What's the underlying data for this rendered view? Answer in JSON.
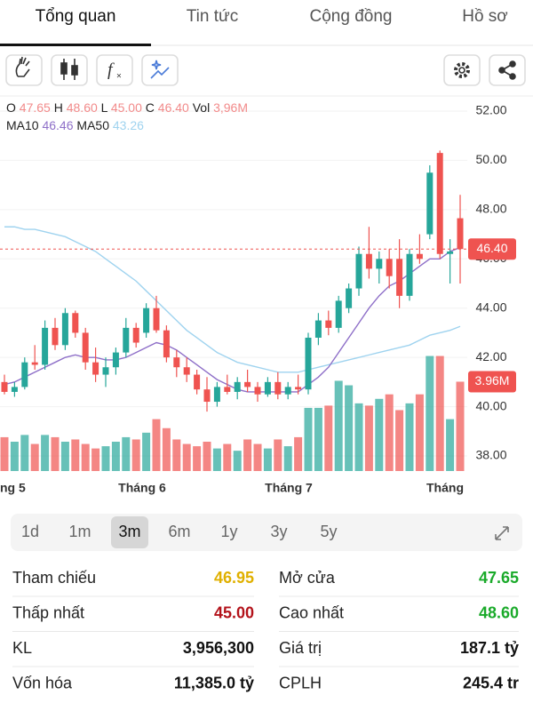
{
  "tabs": [
    "Tổng quan",
    "Tin tức",
    "Cộng đồng",
    "Hồ sơ"
  ],
  "chart": {
    "type": "candlestick",
    "ohlc_header": {
      "o_label": "O",
      "o": "47.65",
      "h_label": "H",
      "h": "48.60",
      "l_label": "L",
      "l": "45.00",
      "c_label": "C",
      "c": "46.40",
      "vol_label": "Vol",
      "vol": "3,96M"
    },
    "ma_header": {
      "ma10_label": "MA10",
      "ma10": "46.46",
      "ma50_label": "MA50",
      "ma50": "43.26"
    },
    "price_label": "46.40",
    "volume_label": "3.96M",
    "x_labels": [
      "ng 5",
      "Tháng 6",
      "Tháng 7",
      "Tháng"
    ],
    "ylim": [
      37.2,
      52.6
    ],
    "yticks": [
      {
        "value": 52,
        "label": "52.00"
      },
      {
        "value": 50,
        "label": "50.00"
      },
      {
        "value": 48,
        "label": "48.00"
      },
      {
        "value": 46,
        "label": "46.00"
      },
      {
        "value": 44,
        "label": "44.00"
      },
      {
        "value": 42,
        "label": "42.00"
      },
      {
        "value": 40,
        "label": "40.00"
      },
      {
        "value": 38,
        "label": "38.00"
      }
    ],
    "volume_ylim": [
      0,
      5.2
    ],
    "colors": {
      "up": "#26a69a",
      "down": "#ef5350",
      "ma10": "#8e6fc8",
      "ma50": "#9fd3ef"
    },
    "open": [
      41.0,
      40.6,
      40.8,
      41.8,
      41.7,
      43.2,
      42.5,
      43.8,
      43.0,
      41.8,
      41.3,
      41.6,
      42.2,
      43.2,
      43.0,
      44.0,
      43.1,
      42.0,
      41.6,
      41.3,
      40.7,
      40.2,
      40.8,
      40.6,
      41.0,
      40.8,
      40.5,
      41.0,
      40.5,
      40.8,
      40.7,
      42.8,
      43.5,
      43.2,
      44.0,
      44.8,
      46.2,
      45.6,
      46.0,
      46.0,
      44.5,
      46.2,
      47.0,
      50.3,
      46.2,
      47.65
    ],
    "high": [
      41.3,
      41.0,
      42.0,
      42.5,
      43.5,
      43.6,
      44.0,
      43.9,
      43.2,
      42.4,
      42.0,
      42.4,
      43.6,
      43.4,
      44.2,
      44.5,
      43.3,
      42.3,
      42.0,
      41.5,
      41.2,
      41.0,
      41.3,
      41.2,
      41.5,
      41.0,
      41.2,
      41.4,
      41.0,
      41.3,
      43.0,
      43.8,
      43.9,
      44.5,
      45.0,
      46.5,
      47.3,
      46.3,
      46.4,
      46.8,
      46.4,
      47.0,
      49.8,
      50.4,
      46.8,
      48.6
    ],
    "low": [
      40.5,
      40.4,
      40.7,
      41.5,
      41.5,
      42.3,
      42.3,
      42.8,
      41.5,
      41.0,
      40.8,
      41.3,
      42.0,
      42.4,
      42.8,
      43.0,
      41.8,
      41.2,
      41.0,
      40.5,
      39.8,
      40.0,
      40.5,
      40.3,
      40.6,
      40.2,
      40.4,
      40.3,
      40.3,
      40.5,
      40.5,
      42.5,
      42.9,
      43.0,
      43.8,
      44.5,
      45.2,
      45.0,
      44.8,
      44.0,
      44.3,
      45.8,
      46.8,
      46.0,
      45.0,
      45.0
    ],
    "close": [
      40.6,
      40.8,
      41.8,
      41.7,
      43.2,
      42.5,
      43.8,
      43.0,
      41.8,
      41.3,
      41.6,
      42.2,
      43.2,
      42.6,
      44.0,
      43.1,
      42.0,
      41.6,
      41.3,
      40.7,
      40.2,
      40.8,
      40.6,
      41.0,
      40.8,
      40.5,
      41.0,
      40.5,
      40.8,
      40.7,
      42.8,
      43.5,
      43.2,
      44.3,
      44.8,
      46.2,
      45.6,
      46.0,
      45.3,
      44.5,
      46.2,
      46.0,
      49.5,
      46.2,
      46.3,
      46.4
    ],
    "volume": [
      1.5,
      1.3,
      1.6,
      1.2,
      1.6,
      1.5,
      1.3,
      1.4,
      1.2,
      1.0,
      1.1,
      1.3,
      1.5,
      1.4,
      1.7,
      2.3,
      1.9,
      1.4,
      1.2,
      1.1,
      1.3,
      1.0,
      1.2,
      0.9,
      1.4,
      1.2,
      1.0,
      1.4,
      1.1,
      1.5,
      2.8,
      2.8,
      2.9,
      4.0,
      3.8,
      3.0,
      2.9,
      3.2,
      3.4,
      2.7,
      3.0,
      3.4,
      5.1,
      5.1,
      2.3,
      3.96
    ],
    "ma10": [
      40.9,
      41.0,
      41.2,
      41.4,
      41.6,
      41.8,
      42.0,
      42.1,
      42.0,
      42.0,
      41.9,
      41.9,
      42.0,
      42.2,
      42.4,
      42.6,
      42.5,
      42.3,
      42.0,
      41.7,
      41.4,
      41.1,
      40.9,
      40.7,
      40.6,
      40.6,
      40.6,
      40.6,
      40.6,
      40.6,
      40.9,
      41.2,
      41.6,
      42.2,
      42.8,
      43.4,
      44.0,
      44.5,
      44.9,
      45.1,
      45.4,
      45.7,
      46.0,
      46.0,
      46.3,
      46.46
    ],
    "ma50": [
      47.3,
      47.3,
      47.2,
      47.2,
      47.1,
      47.0,
      46.9,
      46.7,
      46.5,
      46.3,
      46.0,
      45.7,
      45.4,
      45.1,
      44.7,
      44.3,
      43.9,
      43.5,
      43.1,
      42.8,
      42.5,
      42.2,
      42.0,
      41.8,
      41.7,
      41.6,
      41.5,
      41.4,
      41.4,
      41.4,
      41.5,
      41.6,
      41.7,
      41.8,
      41.9,
      42.0,
      42.1,
      42.2,
      42.3,
      42.4,
      42.5,
      42.7,
      42.9,
      43.0,
      43.1,
      43.26
    ]
  },
  "periods": [
    "1d",
    "1m",
    "3m",
    "6m",
    "1y",
    "3y",
    "5y"
  ],
  "active_period": "3m",
  "stats": [
    [
      {
        "label": "Tham chiếu",
        "value": "46.95",
        "color": "#e0b000"
      },
      {
        "label": "Mở cửa",
        "value": "47.65",
        "color": "#1aaa2a"
      }
    ],
    [
      {
        "label": "Thấp nhất",
        "value": "45.00",
        "color": "#b3121a"
      },
      {
        "label": "Cao nhất",
        "value": "48.60",
        "color": "#1aaa2a"
      }
    ],
    [
      {
        "label": "KL",
        "value": "3,956,300",
        "color": "#111111"
      },
      {
        "label": "Giá trị",
        "value": "187.1 tỷ",
        "color": "#111111"
      }
    ],
    [
      {
        "label": "Vốn hóa",
        "value": "11,385.0 tỷ",
        "color": "#111111"
      },
      {
        "label": "CPLH",
        "value": "245.4 tr",
        "color": "#111111"
      }
    ]
  ]
}
